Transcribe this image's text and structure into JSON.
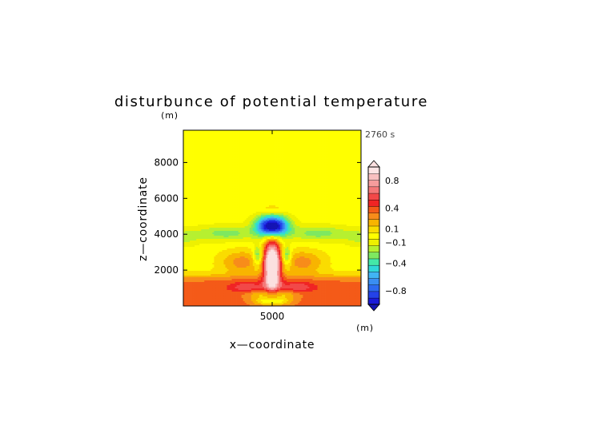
{
  "chart_data": {
    "type": "heatmap",
    "title": "disturbunce of potential temperature",
    "xlabel": "x—coordinate",
    "ylabel": "z—coordinate",
    "xunit": "(m)",
    "yunit": "(m)",
    "time_label": "2760 s",
    "xlim": [
      0,
      10000
    ],
    "ylim": [
      0,
      9800
    ],
    "xticks": [
      {
        "value": 5000,
        "label": "5000"
      }
    ],
    "yticks": [
      {
        "value": 2000,
        "label": "2000"
      },
      {
        "value": 4000,
        "label": "4000"
      },
      {
        "value": 6000,
        "label": "6000"
      },
      {
        "value": 8000,
        "label": "8000"
      }
    ],
    "color_levels": [
      -1.0,
      -0.9,
      -0.8,
      -0.7,
      -0.6,
      -0.5,
      -0.4,
      -0.3,
      -0.2,
      -0.1,
      0.0,
      0.1,
      0.2,
      0.3,
      0.4,
      0.5,
      0.6,
      0.7,
      0.8,
      0.9,
      1.0
    ],
    "colorbar_labels": [
      {
        "value": 0.8,
        "label": "0.8"
      },
      {
        "value": 0.4,
        "label": "0.4"
      },
      {
        "value": 0.1,
        "label": "0.1"
      },
      {
        "value": -0.1,
        "label": "−0.1"
      },
      {
        "value": -0.4,
        "label": "−0.4"
      },
      {
        "value": -0.8,
        "label": "−0.8"
      }
    ],
    "colors": [
      "#1a1ad9",
      "#2442e8",
      "#2d6af0",
      "#3a8ef2",
      "#41b4f4",
      "#30d8d8",
      "#44e8a8",
      "#7ee860",
      "#b6f030",
      "#eef000",
      "#ffff00",
      "#fadc00",
      "#f8b400",
      "#f88c1a",
      "#f45a18",
      "#f02424",
      "#f24848",
      "#f47878",
      "#f69c9c",
      "#f8c0c0",
      "#fce4e4"
    ],
    "over_color": "#fbe0e0",
    "under_color": "#1414b4"
  }
}
